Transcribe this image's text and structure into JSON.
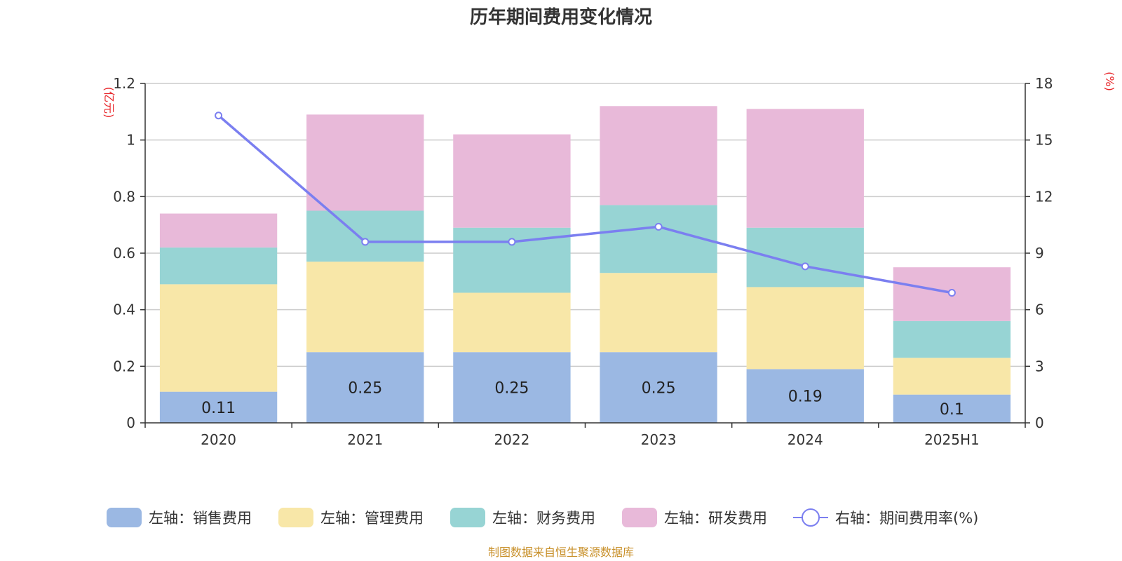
{
  "chart_data": {
    "type": "bar",
    "title": "历年期间费用变化情况",
    "categories": [
      "2020",
      "2021",
      "2022",
      "2023",
      "2024",
      "2025H1"
    ],
    "stacked": true,
    "series": [
      {
        "name": "左轴：销售费用",
        "axis": "left",
        "color": "#9bb8e3",
        "values": [
          0.11,
          0.25,
          0.25,
          0.25,
          0.19,
          0.1
        ]
      },
      {
        "name": "左轴：管理费用",
        "axis": "left",
        "color": "#f8e7a8",
        "values": [
          0.38,
          0.32,
          0.21,
          0.28,
          0.29,
          0.13
        ]
      },
      {
        "name": "左轴：财务费用",
        "axis": "left",
        "color": "#97d4d4",
        "values": [
          0.13,
          0.18,
          0.23,
          0.24,
          0.21,
          0.13
        ]
      },
      {
        "name": "左轴：研发费用",
        "axis": "left",
        "color": "#e8b9d9",
        "values": [
          0.12,
          0.34,
          0.33,
          0.35,
          0.42,
          0.19
        ]
      }
    ],
    "bar_labels": [
      "0.11",
      "0.25",
      "0.25",
      "0.25",
      "0.19",
      "0.1"
    ],
    "line_series": {
      "name": "右轴：期间费用率(%)",
      "axis": "right",
      "color": "#7b7ff0",
      "values": [
        16.3,
        9.6,
        9.6,
        10.4,
        8.3,
        6.9
      ]
    },
    "left_axis": {
      "unit": "(亿元)",
      "ylim": [
        0,
        1.2
      ],
      "ticks": [
        "0",
        "0.2",
        "0.4",
        "0.6",
        "0.8",
        "1",
        "1.2"
      ],
      "tick_values": [
        0,
        0.2,
        0.4,
        0.6,
        0.8,
        1.0,
        1.2
      ]
    },
    "right_axis": {
      "unit": "(%)",
      "ylim": [
        0,
        18
      ],
      "ticks": [
        "0",
        "3",
        "6",
        "9",
        "12",
        "15",
        "18"
      ],
      "tick_values": [
        0,
        3,
        6,
        9,
        12,
        15,
        18
      ]
    },
    "grid": true,
    "legend_position": "bottom",
    "source": "制图数据来自恒生聚源数据库"
  }
}
